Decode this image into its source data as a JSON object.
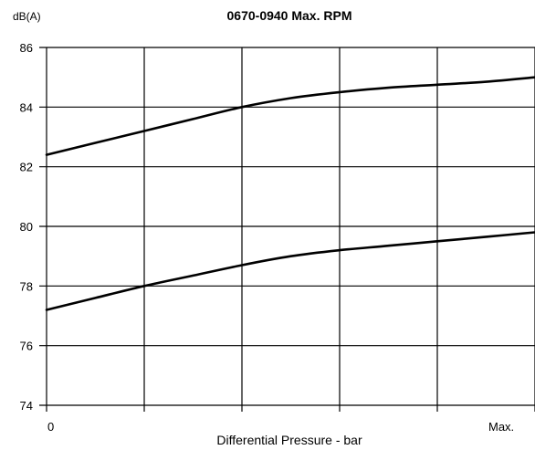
{
  "chart_data": {
    "type": "line",
    "title": "0670-0940 Max. RPM",
    "ylabel": "dB(A)",
    "xlabel": "Differential Pressure - bar",
    "x_tick_labels": [
      "0",
      "Max."
    ],
    "y_ticks": [
      74,
      76,
      78,
      80,
      82,
      84,
      86
    ],
    "ylim": [
      74,
      86
    ],
    "xlim": [
      0,
      1
    ],
    "grid": true,
    "legend": "none",
    "x": [
      0,
      0.1,
      0.2,
      0.3,
      0.4,
      0.5,
      0.6,
      0.7,
      0.8,
      0.9,
      1.0
    ],
    "series": [
      {
        "values": [
          82.4,
          82.8,
          83.2,
          83.6,
          84.0,
          84.3,
          84.5,
          84.65,
          84.75,
          84.85,
          85.0
        ]
      },
      {
        "values": [
          77.2,
          77.6,
          78.0,
          78.35,
          78.7,
          79.0,
          79.2,
          79.35,
          79.5,
          79.65,
          79.8
        ]
      }
    ]
  }
}
